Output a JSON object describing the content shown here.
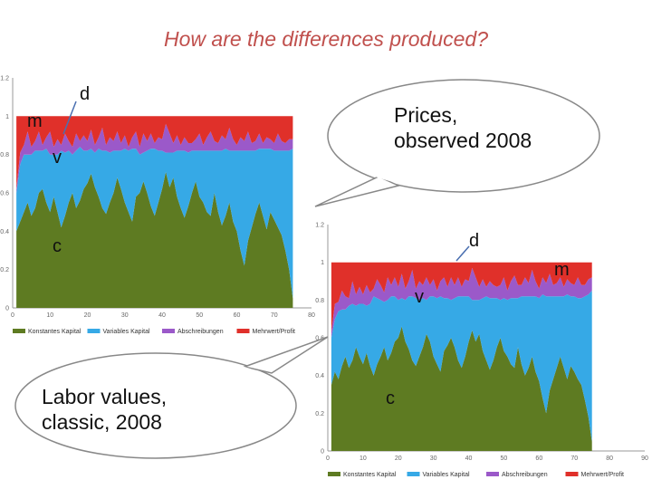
{
  "title": "How are the differences produced?",
  "callouts": {
    "prices": [
      "Prices,",
      "observed 2008"
    ],
    "labor": [
      "Labor values,",
      "classic, 2008"
    ]
  },
  "annotations": {
    "left": {
      "d": "d",
      "m": "m",
      "v": "v",
      "c": "c"
    },
    "right": {
      "d": "d",
      "m": "m",
      "v": "v",
      "c": "c"
    }
  },
  "colors": {
    "c": "#5e7b22",
    "v": "#36a9e6",
    "d": "#9b59c9",
    "m": "#e0302a"
  },
  "chart_data": [
    {
      "id": "labor-values",
      "type": "area",
      "stacked": true,
      "x": [
        1,
        2,
        3,
        4,
        5,
        6,
        7,
        8,
        9,
        10,
        11,
        12,
        13,
        14,
        15,
        16,
        17,
        18,
        19,
        20,
        21,
        22,
        23,
        24,
        25,
        26,
        27,
        28,
        29,
        30,
        31,
        32,
        33,
        34,
        35,
        36,
        37,
        38,
        39,
        40,
        41,
        42,
        43,
        44,
        45,
        46,
        47,
        48,
        49,
        50,
        51,
        52,
        53,
        54,
        55,
        56,
        57,
        58,
        59,
        60,
        61,
        62,
        63,
        64,
        65,
        66,
        67,
        68,
        69,
        70,
        71,
        72,
        73,
        74,
        75
      ],
      "xticks": [
        0,
        10,
        20,
        30,
        40,
        50,
        60,
        70,
        80
      ],
      "yticks": [
        0,
        0.2,
        0.4,
        0.6,
        0.8,
        1,
        1.2
      ],
      "xlim": [
        0,
        80
      ],
      "ylim": [
        0,
        1.2
      ],
      "series": [
        {
          "name": "Konstantes Kapital",
          "key": "c",
          "values": [
            0.4,
            0.45,
            0.5,
            0.55,
            0.48,
            0.52,
            0.6,
            0.62,
            0.55,
            0.5,
            0.58,
            0.5,
            0.42,
            0.48,
            0.55,
            0.6,
            0.52,
            0.56,
            0.62,
            0.65,
            0.7,
            0.63,
            0.58,
            0.52,
            0.49,
            0.55,
            0.6,
            0.68,
            0.62,
            0.55,
            0.5,
            0.45,
            0.58,
            0.6,
            0.66,
            0.6,
            0.53,
            0.48,
            0.55,
            0.62,
            0.71,
            0.63,
            0.68,
            0.58,
            0.52,
            0.47,
            0.53,
            0.6,
            0.66,
            0.58,
            0.55,
            0.5,
            0.48,
            0.6,
            0.5,
            0.43,
            0.48,
            0.55,
            0.45,
            0.4,
            0.3,
            0.22,
            0.35,
            0.42,
            0.49,
            0.55,
            0.48,
            0.41,
            0.5,
            0.46,
            0.42,
            0.38,
            0.3,
            0.2,
            0.05
          ]
        },
        {
          "name": "Variables Kapital",
          "key": "v",
          "values": [
            0.2,
            0.3,
            0.3,
            0.25,
            0.32,
            0.3,
            0.22,
            0.2,
            0.28,
            0.3,
            0.22,
            0.3,
            0.4,
            0.33,
            0.27,
            0.2,
            0.3,
            0.28,
            0.2,
            0.17,
            0.13,
            0.18,
            0.25,
            0.3,
            0.33,
            0.26,
            0.22,
            0.14,
            0.2,
            0.28,
            0.32,
            0.38,
            0.25,
            0.2,
            0.15,
            0.22,
            0.3,
            0.35,
            0.27,
            0.2,
            0.1,
            0.18,
            0.13,
            0.24,
            0.3,
            0.35,
            0.28,
            0.22,
            0.16,
            0.24,
            0.27,
            0.32,
            0.34,
            0.22,
            0.32,
            0.39,
            0.35,
            0.27,
            0.37,
            0.42,
            0.52,
            0.6,
            0.47,
            0.4,
            0.33,
            0.28,
            0.35,
            0.42,
            0.33,
            0.36,
            0.4,
            0.44,
            0.52,
            0.62,
            0.78
          ]
        },
        {
          "name": "Abschreibungen",
          "key": "d",
          "values": [
            0.02,
            0.06,
            0.05,
            0.12,
            0.04,
            0.05,
            0.1,
            0.03,
            0.06,
            0.12,
            0.04,
            0.08,
            0.03,
            0.1,
            0.05,
            0.04,
            0.09,
            0.03,
            0.08,
            0.05,
            0.1,
            0.04,
            0.06,
            0.12,
            0.03,
            0.08,
            0.05,
            0.1,
            0.04,
            0.07,
            0.02,
            0.06,
            0.09,
            0.04,
            0.1,
            0.05,
            0.08,
            0.03,
            0.07,
            0.06,
            0.15,
            0.1,
            0.05,
            0.08,
            0.03,
            0.07,
            0.05,
            0.04,
            0.06,
            0.09,
            0.03,
            0.07,
            0.1,
            0.05,
            0.04,
            0.08,
            0.05,
            0.12,
            0.06,
            0.03,
            0.07,
            0.05,
            0.1,
            0.04,
            0.05,
            0.08,
            0.03,
            0.06,
            0.05,
            0.04,
            0.09,
            0.05,
            0.04,
            0.06,
            0.05
          ]
        },
        {
          "name": "Mehrwert/Profit",
          "key": "m",
          "values": [
            0.38,
            0.19,
            0.15,
            0.08,
            0.16,
            0.13,
            0.08,
            0.15,
            0.11,
            0.08,
            0.16,
            0.12,
            0.15,
            0.09,
            0.13,
            0.16,
            0.09,
            0.13,
            0.1,
            0.13,
            0.07,
            0.15,
            0.11,
            0.06,
            0.15,
            0.11,
            0.13,
            0.08,
            0.14,
            0.1,
            0.16,
            0.11,
            0.08,
            0.16,
            0.09,
            0.13,
            0.09,
            0.14,
            0.11,
            0.12,
            0.04,
            0.09,
            0.14,
            0.1,
            0.15,
            0.11,
            0.14,
            0.14,
            0.12,
            0.09,
            0.15,
            0.11,
            0.08,
            0.13,
            0.14,
            0.1,
            0.12,
            0.06,
            0.12,
            0.15,
            0.11,
            0.13,
            0.08,
            0.14,
            0.13,
            0.09,
            0.14,
            0.11,
            0.12,
            0.14,
            0.09,
            0.13,
            0.14,
            0.12,
            0.12
          ]
        }
      ]
    },
    {
      "id": "prices-observed",
      "type": "area",
      "stacked": true,
      "x": [
        1,
        2,
        3,
        4,
        5,
        6,
        7,
        8,
        9,
        10,
        11,
        12,
        13,
        14,
        15,
        16,
        17,
        18,
        19,
        20,
        21,
        22,
        23,
        24,
        25,
        26,
        27,
        28,
        29,
        30,
        31,
        32,
        33,
        34,
        35,
        36,
        37,
        38,
        39,
        40,
        41,
        42,
        43,
        44,
        45,
        46,
        47,
        48,
        49,
        50,
        51,
        52,
        53,
        54,
        55,
        56,
        57,
        58,
        59,
        60,
        61,
        62,
        63,
        64,
        65,
        66,
        67,
        68,
        69,
        70,
        71,
        72,
        73,
        74,
        75
      ],
      "xticks": [
        0,
        10,
        20,
        30,
        40,
        50,
        60,
        70,
        80,
        90
      ],
      "yticks": [
        0,
        0.2,
        0.4,
        0.6,
        0.8,
        1,
        1.2
      ],
      "xlim": [
        0,
        90
      ],
      "ylim": [
        0,
        1.2
      ],
      "series": [
        {
          "name": "Konstantes Kapital",
          "key": "c",
          "values": [
            0.35,
            0.42,
            0.38,
            0.45,
            0.5,
            0.44,
            0.48,
            0.55,
            0.5,
            0.46,
            0.52,
            0.45,
            0.4,
            0.46,
            0.5,
            0.55,
            0.48,
            0.52,
            0.58,
            0.6,
            0.66,
            0.58,
            0.54,
            0.48,
            0.45,
            0.5,
            0.55,
            0.62,
            0.58,
            0.5,
            0.46,
            0.42,
            0.53,
            0.56,
            0.6,
            0.55,
            0.48,
            0.44,
            0.5,
            0.58,
            0.64,
            0.58,
            0.62,
            0.53,
            0.48,
            0.43,
            0.48,
            0.55,
            0.6,
            0.53,
            0.5,
            0.46,
            0.44,
            0.55,
            0.46,
            0.4,
            0.44,
            0.5,
            0.42,
            0.37,
            0.28,
            0.2,
            0.32,
            0.38,
            0.44,
            0.5,
            0.44,
            0.38,
            0.45,
            0.42,
            0.38,
            0.35,
            0.27,
            0.18,
            0.05
          ]
        },
        {
          "name": "Variables Kapital",
          "key": "v",
          "values": [
            0.25,
            0.28,
            0.36,
            0.3,
            0.25,
            0.33,
            0.3,
            0.22,
            0.28,
            0.32,
            0.25,
            0.33,
            0.42,
            0.35,
            0.3,
            0.24,
            0.32,
            0.3,
            0.24,
            0.2,
            0.15,
            0.22,
            0.28,
            0.34,
            0.36,
            0.3,
            0.26,
            0.18,
            0.24,
            0.32,
            0.35,
            0.4,
            0.28,
            0.25,
            0.2,
            0.26,
            0.34,
            0.38,
            0.32,
            0.24,
            0.16,
            0.22,
            0.18,
            0.28,
            0.34,
            0.38,
            0.33,
            0.26,
            0.2,
            0.28,
            0.3,
            0.35,
            0.37,
            0.26,
            0.36,
            0.42,
            0.38,
            0.32,
            0.4,
            0.44,
            0.55,
            0.62,
            0.5,
            0.44,
            0.38,
            0.32,
            0.38,
            0.45,
            0.37,
            0.4,
            0.43,
            0.46,
            0.55,
            0.65,
            0.8
          ]
        },
        {
          "name": "Abschreibungen",
          "key": "d",
          "values": [
            0.03,
            0.08,
            0.05,
            0.1,
            0.07,
            0.04,
            0.12,
            0.06,
            0.09,
            0.05,
            0.11,
            0.06,
            0.04,
            0.1,
            0.08,
            0.05,
            0.12,
            0.06,
            0.1,
            0.07,
            0.13,
            0.06,
            0.08,
            0.14,
            0.05,
            0.1,
            0.07,
            0.12,
            0.06,
            0.09,
            0.04,
            0.08,
            0.11,
            0.06,
            0.12,
            0.07,
            0.1,
            0.05,
            0.09,
            0.08,
            0.17,
            0.12,
            0.07,
            0.1,
            0.05,
            0.09,
            0.07,
            0.06,
            0.08,
            0.11,
            0.05,
            0.09,
            0.12,
            0.07,
            0.06,
            0.1,
            0.07,
            0.14,
            0.08,
            0.05,
            0.09,
            0.07,
            0.12,
            0.06,
            0.07,
            0.1,
            0.05,
            0.08,
            0.07,
            0.06,
            0.11,
            0.07,
            0.06,
            0.08,
            0.07
          ]
        },
        {
          "name": "Mehrwert/Profit",
          "key": "m",
          "values": [
            0.37,
            0.22,
            0.21,
            0.15,
            0.18,
            0.19,
            0.1,
            0.17,
            0.13,
            0.17,
            0.12,
            0.16,
            0.14,
            0.09,
            0.12,
            0.16,
            0.08,
            0.12,
            0.08,
            0.13,
            0.06,
            0.14,
            0.1,
            0.04,
            0.14,
            0.1,
            0.12,
            0.08,
            0.12,
            0.09,
            0.15,
            0.1,
            0.08,
            0.13,
            0.08,
            0.12,
            0.08,
            0.13,
            0.09,
            0.1,
            0.03,
            0.08,
            0.13,
            0.09,
            0.13,
            0.1,
            0.12,
            0.13,
            0.12,
            0.08,
            0.15,
            0.1,
            0.07,
            0.12,
            0.12,
            0.08,
            0.11,
            0.04,
            0.1,
            0.14,
            0.08,
            0.11,
            0.06,
            0.12,
            0.11,
            0.08,
            0.13,
            0.09,
            0.11,
            0.12,
            0.08,
            0.12,
            0.12,
            0.09,
            0.08
          ]
        }
      ]
    }
  ]
}
